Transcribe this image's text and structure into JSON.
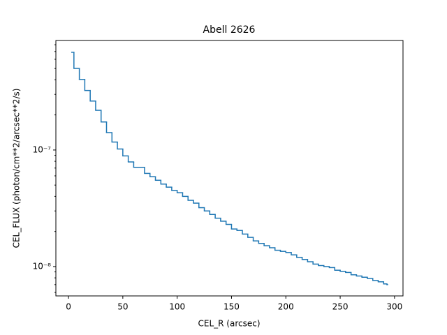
{
  "chart_data": {
    "type": "step",
    "title": "Abell 2626",
    "xlabel": "CEL_R (arcsec)",
    "ylabel": "CEL_FLUX (photon/cm**2/arcsec**2/s)",
    "color": "#1f77b4",
    "ylog": true,
    "xlim": [
      -11.6,
      307.8
    ],
    "ylim": [
      5.6e-09,
      8.7e-07
    ],
    "xticks": [
      0,
      50,
      100,
      150,
      200,
      250,
      300
    ],
    "yticks": [
      {
        "value": 1e-08,
        "label": "10⁻⁸"
      },
      {
        "value": 1e-07,
        "label": "10⁻⁷"
      }
    ],
    "yminorticks": [
      6e-09,
      7e-09,
      8e-09,
      9e-09,
      2e-08,
      3e-08,
      4e-08,
      5e-08,
      6e-08,
      7e-08,
      8e-08,
      9e-08,
      2e-07,
      3e-07,
      4e-07,
      5e-07,
      6e-07,
      7e-07,
      8e-07
    ],
    "x": [
      3,
      5,
      10,
      15,
      20,
      25,
      30,
      35,
      40,
      45,
      50,
      55,
      60,
      70,
      75,
      80,
      85,
      90,
      95,
      100,
      105,
      110,
      115,
      120,
      125,
      130,
      135,
      140,
      145,
      150,
      155,
      160,
      165,
      170,
      175,
      180,
      185,
      190,
      195,
      200,
      205,
      210,
      215,
      220,
      225,
      230,
      235,
      240,
      245,
      250,
      255,
      260,
      265,
      270,
      275,
      280,
      285,
      290,
      293
    ],
    "values": [
      6.89e-07,
      5.01e-07,
      4.03e-07,
      3.24e-07,
      2.63e-07,
      2.19e-07,
      1.74e-07,
      1.41e-07,
      1.17e-07,
      1.02e-07,
      8.9e-08,
      7.9e-08,
      7.1e-08,
      6.3e-08,
      5.9e-08,
      5.5e-08,
      5.1e-08,
      4.8e-08,
      4.5e-08,
      4.3e-08,
      4e-08,
      3.7e-08,
      3.5e-08,
      3.2e-08,
      3e-08,
      2.8e-08,
      2.6e-08,
      2.45e-08,
      2.3e-08,
      2.1e-08,
      2.04e-08,
      1.9e-08,
      1.78e-08,
      1.66e-08,
      1.58e-08,
      1.51e-08,
      1.45e-08,
      1.38e-08,
      1.35e-08,
      1.32e-08,
      1.26e-08,
      1.2e-08,
      1.15e-08,
      1.1e-08,
      1.05e-08,
      1.02e-08,
      1e-08,
      9.8e-09,
      9.3e-09,
      9.1e-09,
      8.9e-09,
      8.5e-09,
      8.3e-09,
      8.1e-09,
      7.9e-09,
      7.6e-09,
      7.4e-09,
      7.1e-09,
      7e-09
    ]
  }
}
